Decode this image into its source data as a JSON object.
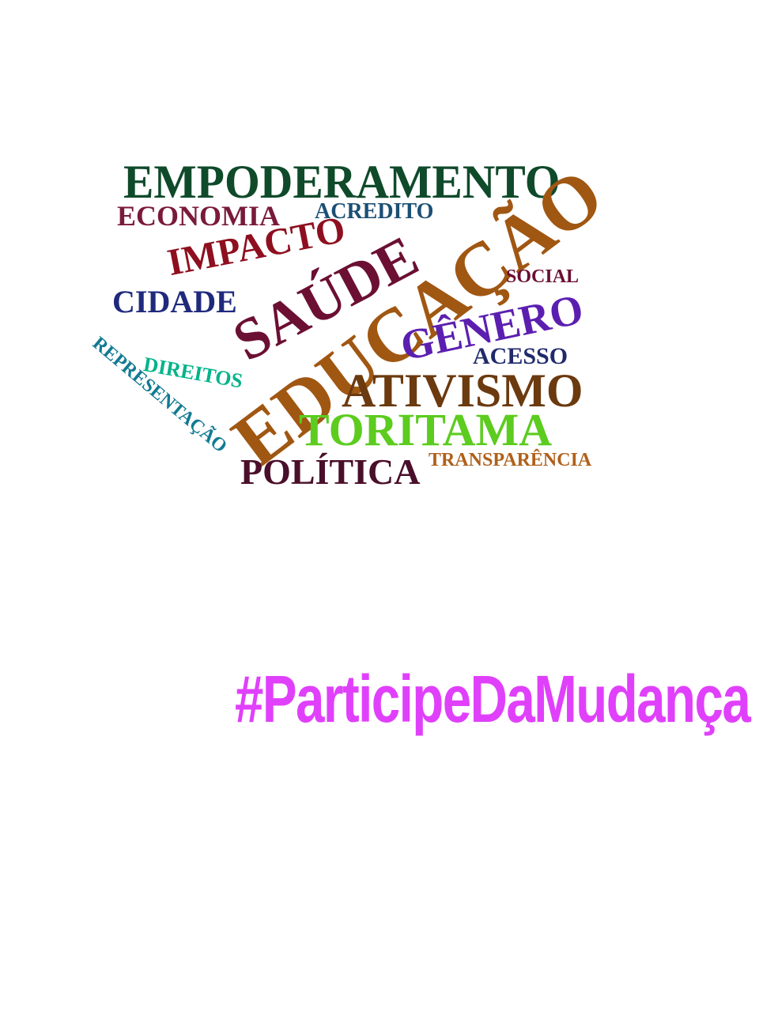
{
  "word_cloud": {
    "words": [
      {
        "key": "empoderamento",
        "text": "EMPODERAMENTO",
        "color": "#0f4a2a"
      },
      {
        "key": "economia",
        "text": "ECONOMIA",
        "color": "#7a1a3a"
      },
      {
        "key": "acredito",
        "text": "ACREDITO",
        "color": "#1c4f74"
      },
      {
        "key": "impacto",
        "text": "IMPACTO",
        "color": "#8e0f1f"
      },
      {
        "key": "cidade",
        "text": "CIDADE",
        "color": "#1f2a7c"
      },
      {
        "key": "saude",
        "text": "SAÚDE",
        "color": "#6b0f33"
      },
      {
        "key": "educacao",
        "text": "EDUCAÇÃO",
        "color": "#a05712"
      },
      {
        "key": "social",
        "text": "SOCIAL",
        "color": "#6b0f33"
      },
      {
        "key": "genero",
        "text": "GÊNERO",
        "color": "#5b1fb0"
      },
      {
        "key": "acesso",
        "text": "ACESSO",
        "color": "#1f2a6b"
      },
      {
        "key": "ativismo",
        "text": "ATIVISMO",
        "color": "#6b3a0f"
      },
      {
        "key": "direitos",
        "text": "DIREITOS",
        "color": "#00b38a"
      },
      {
        "key": "representacao",
        "text": "REPRESENTAÇÃO",
        "color": "#127a92"
      },
      {
        "key": "toritama",
        "text": "TORITAMA",
        "color": "#5ccc1f"
      },
      {
        "key": "politica",
        "text": "POLÍTICA",
        "color": "#4a0f2a"
      },
      {
        "key": "transparencia",
        "text": "TRANSPARÊNCIA",
        "color": "#b0601a"
      }
    ]
  },
  "hashtag": {
    "text": "#ParticipeDaMudança",
    "color": "#e040fb"
  }
}
